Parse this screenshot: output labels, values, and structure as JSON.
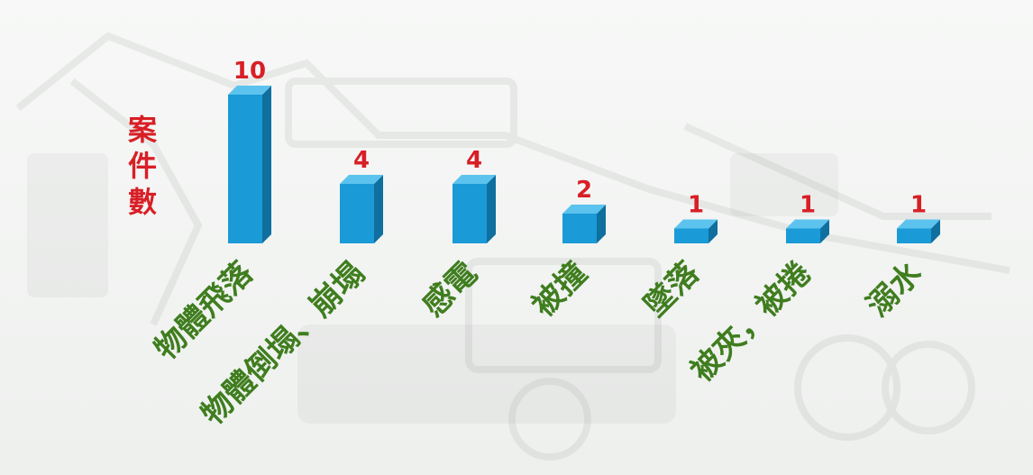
{
  "chart_data": {
    "type": "bar",
    "title": "",
    "xlabel": "",
    "ylabel": "案件數",
    "categories": [
      "物體飛落",
      "物體倒塌、崩塌",
      "感電",
      "被撞",
      "墜落",
      "被夾，被捲",
      "溺水"
    ],
    "values": [
      10,
      4,
      4,
      2,
      1,
      1,
      1
    ],
    "ylim": [
      0,
      10
    ],
    "grid": false,
    "legend": "none",
    "data_labels": true,
    "bar_style": "3d"
  },
  "colors": {
    "bar_front": "#1a9ad6",
    "bar_top": "#5cc3ee",
    "bar_side": "#0f6f9f",
    "value_label": "#d81f26",
    "ylabel": "#d81f26",
    "category_label": "#3f7d1e",
    "background": "#f3f5f3"
  },
  "background_art": "faded-construction-machinery-watermark"
}
